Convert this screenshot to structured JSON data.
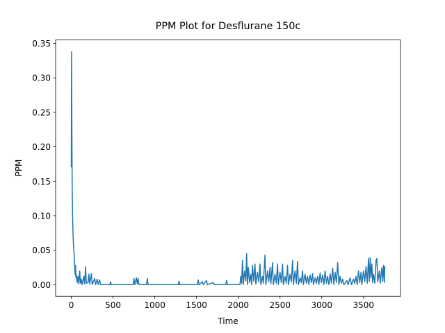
{
  "chart_data": {
    "type": "line",
    "title": "PPM Plot for Desflurane 150c",
    "x_label": "Time",
    "y_label": "PPM",
    "color": "#1f77b4",
    "xlim": [
      -188,
      3943
    ],
    "ylim": [
      -0.017,
      0.355
    ],
    "xticks": [
      0,
      500,
      1000,
      1500,
      2000,
      2500,
      3000,
      3500
    ],
    "yticks": [
      {
        "value": 0,
        "label": "0.00"
      },
      {
        "value": 0.05,
        "label": "0.05"
      },
      {
        "value": 0.1,
        "label": "0.10"
      },
      {
        "value": 0.15,
        "label": "0.15"
      },
      {
        "value": 0.2,
        "label": "0.20"
      },
      {
        "value": 0.25,
        "label": "0.25"
      },
      {
        "value": 0.3,
        "label": "0.30"
      },
      {
        "value": 0.35,
        "label": "0.35"
      }
    ],
    "x": [
      0,
      3,
      6,
      10,
      15,
      20,
      25,
      30,
      35,
      40,
      45,
      50,
      55,
      60,
      70,
      80,
      90,
      100,
      110,
      120,
      130,
      150,
      160,
      170,
      180,
      200,
      210,
      220,
      240,
      250,
      280,
      290,
      310,
      320,
      340,
      350,
      460,
      470,
      480,
      740,
      750,
      760,
      780,
      790,
      800,
      810,
      900,
      910,
      920,
      1280,
      1290,
      1300,
      1510,
      1520,
      1530,
      1570,
      1580,
      1620,
      1630,
      1700,
      1710,
      1850,
      1860,
      1870,
      2020,
      2030,
      2040,
      2050,
      2060,
      2075,
      2090,
      2100,
      2110,
      2120,
      2135,
      2150,
      2160,
      2170,
      2185,
      2200,
      2210,
      2230,
      2245,
      2260,
      2270,
      2290,
      2300,
      2320,
      2330,
      2350,
      2365,
      2380,
      2390,
      2410,
      2420,
      2440,
      2455,
      2470,
      2480,
      2500,
      2515,
      2530,
      2540,
      2560,
      2575,
      2590,
      2600,
      2620,
      2635,
      2650,
      2660,
      2680,
      2695,
      2710,
      2720,
      2740,
      2755,
      2770,
      2780,
      2800,
      2815,
      2830,
      2845,
      2860,
      2875,
      2890,
      2900,
      2920,
      2935,
      2950,
      2965,
      2980,
      2995,
      3010,
      3025,
      3040,
      3055,
      3070,
      3085,
      3100,
      3115,
      3130,
      3145,
      3160,
      3175,
      3190,
      3205,
      3220,
      3235,
      3250,
      3265,
      3300,
      3315,
      3340,
      3355,
      3380,
      3395,
      3410,
      3425,
      3440,
      3455,
      3470,
      3480,
      3500,
      3515,
      3530,
      3545,
      3560,
      3570,
      3580,
      3590,
      3600,
      3610,
      3620,
      3635,
      3650,
      3660,
      3670,
      3690,
      3700,
      3720,
      3730,
      3740,
      3750,
      3755
    ],
    "values": [
      0.17,
      0.338,
      0.25,
      0.15,
      0.1,
      0.075,
      0.06,
      0.05,
      0.04,
      0.03,
      0.015,
      0.028,
      0.01,
      0.015,
      0.003,
      0.012,
      0.001,
      0.02,
      0.002,
      0.008,
      0,
      0.012,
      0.001,
      0.026,
      0.002,
      0.003,
      0.015,
      0.001,
      0.016,
      0,
      0.009,
      0,
      0.008,
      0,
      0.007,
      0,
      0,
      0.004,
      0,
      0,
      0.009,
      0,
      0.01,
      0.001,
      0.009,
      0,
      0,
      0.009,
      0,
      0,
      0.005,
      0,
      0,
      0.007,
      0,
      0.004,
      0,
      0.006,
      0,
      0.003,
      0,
      0,
      0.006,
      0,
      0,
      0.012,
      0.002,
      0.035,
      0,
      0.02,
      0.005,
      0.045,
      0,
      0.025,
      0.003,
      0.015,
      0,
      0.028,
      0.005,
      0.03,
      0.001,
      0.018,
      0.004,
      0.03,
      0,
      0.012,
      0.002,
      0.043,
      0,
      0.02,
      0.004,
      0.025,
      0.001,
      0.032,
      0,
      0.015,
      0.002,
      0.03,
      0,
      0.018,
      0.003,
      0.03,
      0,
      0.012,
      0.002,
      0.028,
      0,
      0.015,
      0.004,
      0.035,
      0,
      0.02,
      0.002,
      0.034,
      0,
      0.01,
      0.003,
      0.02,
      0,
      0.015,
      0.002,
      0.012,
      0,
      0.014,
      0.003,
      0.016,
      0,
      0.01,
      0.002,
      0.012,
      0,
      0.017,
      0.003,
      0.014,
      0,
      0.02,
      0.002,
      0.012,
      0,
      0.016,
      0.002,
      0.024,
      0,
      0.018,
      0.003,
      0.032,
      0,
      0.012,
      0.002,
      0.008,
      0,
      0.006,
      0,
      0.01,
      0,
      0.008,
      0.002,
      0.012,
      0,
      0.02,
      0.003,
      0.018,
      0,
      0.02,
      0.004,
      0.026,
      0.002,
      0.038,
      0.005,
      0.039,
      0.01,
      0.03,
      0.003,
      0.015,
      0.002,
      0.035,
      0.038,
      0.004,
      0.02,
      0.002,
      0.025,
      0.005,
      0.028,
      0.003,
      0.027
    ]
  }
}
